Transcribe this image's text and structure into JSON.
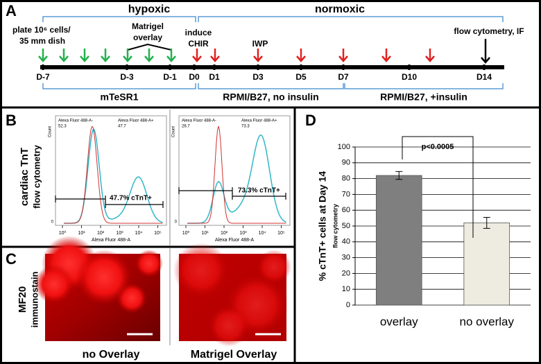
{
  "panel_a": {
    "label": "A",
    "phases": [
      "hypoxic",
      "normoxic"
    ],
    "plating": [
      "plate 10⁶ cells/",
      "35 mm dish"
    ],
    "overlay": [
      "Matrigel",
      "overlay"
    ],
    "induce": [
      "induce",
      "CHIR"
    ],
    "iwp": "IWP",
    "readout": "flow cytometry, IF",
    "days": [
      "D-7",
      "D-3",
      "D-1",
      "D0",
      "D1",
      "D3",
      "D5",
      "D7",
      "D10",
      "D14"
    ],
    "media": [
      "mTeSR1",
      "RPMI/B27, no insulin",
      "RPMI/B27, +insulin"
    ]
  },
  "panel_b": {
    "label": "B",
    "row_label": [
      "cardiac TnT",
      "flow cytometry"
    ],
    "y_axis": "Count",
    "y_zero": 0,
    "x_axis": "Alexa Fluor 488-A",
    "x_ticks": [
      "10⁰",
      "10¹",
      "10²",
      "10³",
      "10⁴",
      "10⁵"
    ],
    "plots": [
      {
        "gate_neg": "Alexa Fluor 488-A-",
        "neg": 52.3,
        "gate_pos": "Alexa Fluor 488-A+",
        "pos": 47.7,
        "gate_label": "47.7% cTnT+"
      },
      {
        "gate_neg": "Alexa Fluor 488-A-",
        "neg": 26.7,
        "gate_pos": "Alexa Fluor 488-A+",
        "pos": 73.3,
        "gate_label": "73.3% cTnT+"
      }
    ]
  },
  "panel_c": {
    "label": "C",
    "row_label": [
      "MF20",
      "immunostain"
    ],
    "captions": [
      "no Overlay",
      "Matrigel Overlay"
    ]
  },
  "chart_data": {
    "type": "bar",
    "panel_label": "D",
    "y_label": "% cTnT+ cells at Day 14",
    "y_sublabel": "flow cytometry",
    "categories": [
      "overlay",
      "no overlay"
    ],
    "values": [
      82,
      52
    ],
    "errors": [
      2.5,
      3.5
    ],
    "colors": [
      "#7f7f7f",
      "#eeebe0"
    ],
    "ylim": [
      0,
      100
    ],
    "yticks": [
      0,
      10,
      20,
      30,
      40,
      50,
      60,
      70,
      80,
      90,
      100
    ],
    "grid": true,
    "annotation": "p<0.0005"
  }
}
